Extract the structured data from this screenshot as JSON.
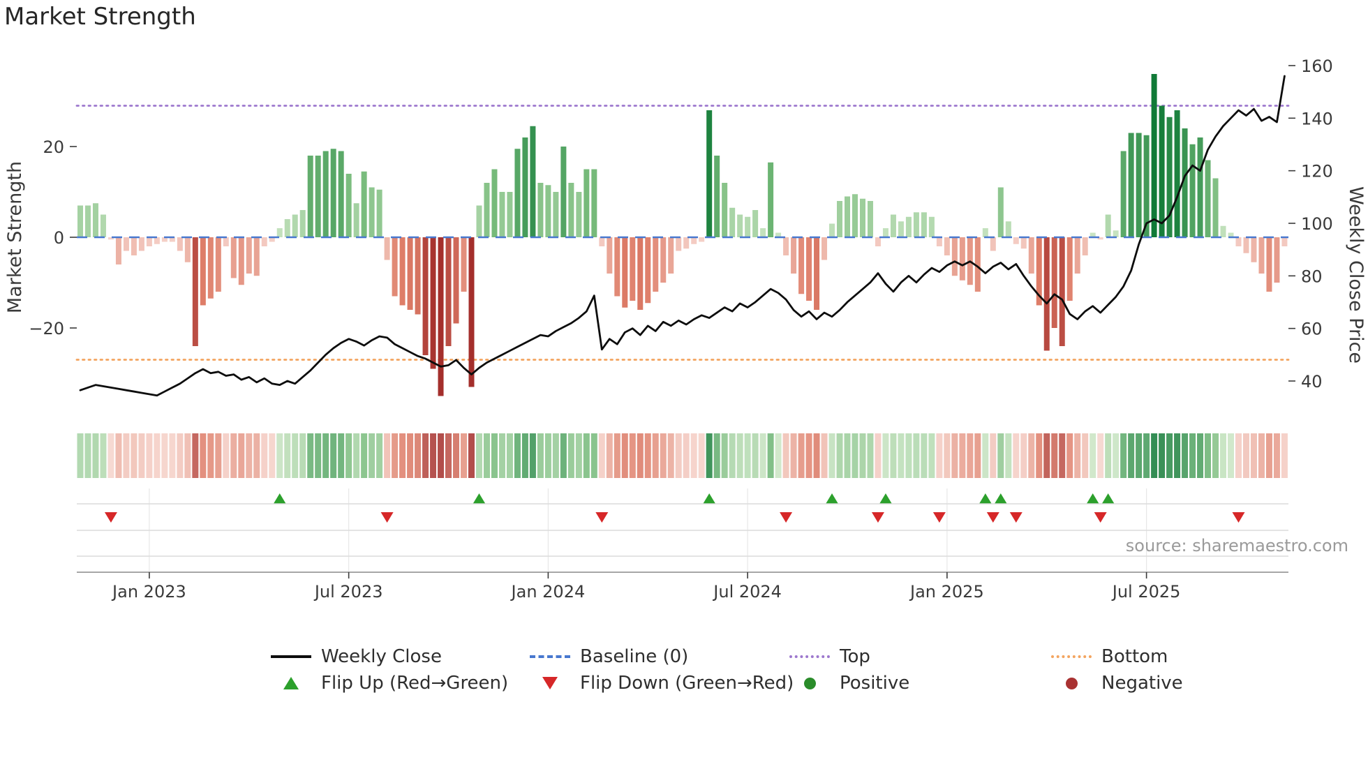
{
  "title": "Market Strength",
  "source": "source: sharemaestro.com",
  "legend": {
    "weekly_close": "Weekly Close",
    "baseline": "Baseline (0)",
    "top": "Top",
    "bottom": "Bottom",
    "flip_up": "Flip Up (Red→Green)",
    "flip_down": "Flip Down (Green→Red)",
    "positive": "Positive",
    "negative": "Negative"
  },
  "chart_data": {
    "type": "combo",
    "title": "Market Strength",
    "x_axis": {
      "unit": "week",
      "n_points": 158,
      "tick_labels": [
        "Jan 2023",
        "Jul 2023",
        "Jan 2024",
        "Jul 2024",
        "Jan 2025",
        "Jul 2025"
      ],
      "tick_week_indices": [
        9,
        35,
        61,
        87,
        113,
        139
      ]
    },
    "left_axis": {
      "label": "Market Strength",
      "ticks": [
        20,
        0,
        -20
      ],
      "range": [
        -40.5,
        40.5
      ]
    },
    "right_axis": {
      "label": "Weekly Close Price",
      "ticks": [
        160,
        140,
        120,
        100,
        80,
        60,
        40
      ],
      "range": [
        24,
        164
      ]
    },
    "series": [
      {
        "name": "Market Strength",
        "type": "bar",
        "axis": "left",
        "palette": {
          "positive_light": "#cfe7c7",
          "positive_mid": "#76ba7a",
          "positive_dark": "#107a37",
          "negative_light": "#f6d5cd",
          "negative_mid": "#de7d68",
          "negative_dark": "#a42f2c"
        },
        "values": [
          7,
          7,
          7.5,
          5,
          -0.5,
          -6,
          -3,
          -4,
          -3,
          -2,
          -1.5,
          -1,
          -1,
          -3,
          -5.5,
          -24,
          -15,
          -13.5,
          -12,
          -2,
          -9,
          -10.5,
          -8,
          -8.5,
          -2,
          -1,
          2,
          4,
          5,
          6,
          18,
          18,
          19,
          19.5,
          19,
          14,
          7.5,
          14.5,
          11,
          10.5,
          -5,
          -13,
          -15,
          -16,
          -17,
          -26,
          -29,
          -35,
          -24,
          -19,
          -12,
          -33,
          7,
          12,
          15,
          10,
          10,
          19.5,
          22,
          24.5,
          12,
          11.5,
          10,
          20,
          12,
          10,
          15,
          15,
          -2,
          -8,
          -13,
          -15.5,
          -14,
          -16,
          -14.5,
          -12,
          -10,
          -8,
          -3,
          -2.5,
          -1.5,
          -1,
          28,
          18,
          12,
          6.5,
          5,
          4.5,
          6,
          2,
          16.5,
          1,
          -4,
          -8,
          -12.5,
          -14,
          -16,
          -5,
          3,
          8,
          9,
          9.5,
          8.5,
          8,
          -2,
          2,
          5,
          3.5,
          4.5,
          5.5,
          5.5,
          4.5,
          -2,
          -4,
          -8.5,
          -9.5,
          -10.5,
          -12,
          2,
          -3,
          11,
          3.5,
          -1.5,
          -2.5,
          -8,
          -15,
          -25,
          -20,
          -24,
          -14,
          -8,
          -4,
          1,
          -0.5,
          5,
          1.5,
          19,
          23,
          23,
          22.5,
          36,
          29,
          26.5,
          28,
          24,
          20.5,
          22,
          17,
          13,
          2.5,
          1,
          -2,
          -3.5,
          -5.5,
          -8,
          -12,
          -10,
          -2
        ]
      },
      {
        "name": "Weekly Close",
        "type": "line",
        "axis": "right",
        "color": "#0d0d0d",
        "values": [
          36.5,
          37.5,
          38.5,
          38,
          37.5,
          37,
          36.5,
          36,
          35.5,
          35,
          34.5,
          36,
          37.5,
          39,
          41,
          43,
          44.5,
          43,
          43.5,
          42,
          42.5,
          40.5,
          41.5,
          39.5,
          41,
          39,
          38.5,
          40,
          39,
          41.5,
          44,
          47,
          50,
          52.5,
          54.5,
          56,
          55,
          53.5,
          55.5,
          57,
          56.5,
          54,
          52.5,
          51,
          49.5,
          48.5,
          47,
          45.5,
          46,
          48,
          45,
          42.5,
          45,
          47,
          48.5,
          50,
          51.5,
          53,
          54.5,
          56,
          57.5,
          57,
          59,
          60.5,
          62,
          64,
          66.5,
          72.5,
          52,
          56,
          54,
          58.5,
          60,
          57.5,
          61,
          59,
          62.5,
          61,
          63,
          61.5,
          63.5,
          65,
          64,
          66,
          68,
          66.5,
          69.5,
          68,
          70,
          72.5,
          75,
          73.5,
          71,
          67,
          64.5,
          66.5,
          63.5,
          66,
          64.5,
          67,
          70,
          72.5,
          75,
          77.5,
          81,
          77,
          74,
          77.5,
          80,
          77.5,
          80.5,
          83,
          81.5,
          84,
          85.5,
          84,
          85.5,
          83.5,
          81,
          83.5,
          85,
          82.5,
          84.5,
          80,
          76,
          72.5,
          69.5,
          73,
          71,
          65.5,
          63.5,
          66.5,
          68.5,
          66,
          69,
          72,
          76,
          82,
          92,
          100,
          101.5,
          100,
          103,
          110,
          118,
          122,
          120,
          128,
          133,
          137,
          140,
          143,
          141,
          143.5,
          139,
          140.5,
          138.5,
          156
        ]
      }
    ],
    "heatmap_strip": {
      "type": "heatmap",
      "rows": 1,
      "source_series": "Market Strength"
    },
    "reference_lines": [
      {
        "name": "Baseline (0)",
        "axis": "left",
        "value": 0,
        "style": "dashed",
        "color": "#4878cf"
      },
      {
        "name": "Top",
        "axis": "left",
        "value": 29,
        "style": "dotted",
        "color": "#9d78ce"
      },
      {
        "name": "Bottom",
        "axis": "left",
        "value": -27,
        "style": "dotted",
        "color": "#f3a45f"
      }
    ],
    "markers": {
      "flip_up": {
        "label": "Flip Up (Red→Green)",
        "color": "#2ca02c",
        "weeks": [
          26,
          52,
          82,
          98,
          105,
          118,
          120,
          132,
          134
        ]
      },
      "flip_down": {
        "label": "Flip Down (Green→Red)",
        "color": "#d62728",
        "weeks": [
          4,
          40,
          68,
          92,
          104,
          112,
          119,
          122,
          133,
          151
        ]
      }
    },
    "legend_position": "bottom"
  }
}
